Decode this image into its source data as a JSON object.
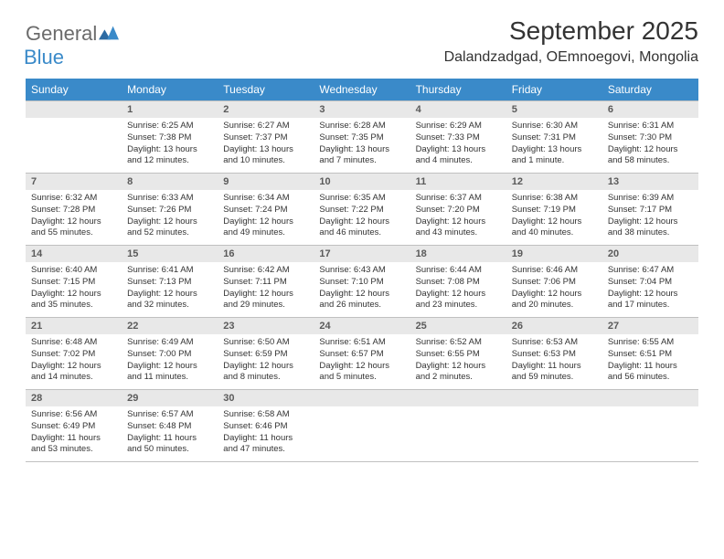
{
  "logo": {
    "general": "General",
    "blue": "Blue"
  },
  "title": "September 2025",
  "location": "Dalandzadgad, OEmnoegovi, Mongolia",
  "colors": {
    "header_bg": "#3a8ac9",
    "daynum_bg": "#e8e8e8",
    "text": "#333333",
    "logo_gray": "#6b6b6b",
    "logo_blue": "#3a8ac9",
    "rule": "#c0c0c0"
  },
  "weekdays": [
    "Sunday",
    "Monday",
    "Tuesday",
    "Wednesday",
    "Thursday",
    "Friday",
    "Saturday"
  ],
  "days": [
    {
      "num": "",
      "sunrise": "",
      "sunset": "",
      "daylight": ""
    },
    {
      "num": "1",
      "sunrise": "Sunrise: 6:25 AM",
      "sunset": "Sunset: 7:38 PM",
      "daylight": "Daylight: 13 hours and 12 minutes."
    },
    {
      "num": "2",
      "sunrise": "Sunrise: 6:27 AM",
      "sunset": "Sunset: 7:37 PM",
      "daylight": "Daylight: 13 hours and 10 minutes."
    },
    {
      "num": "3",
      "sunrise": "Sunrise: 6:28 AM",
      "sunset": "Sunset: 7:35 PM",
      "daylight": "Daylight: 13 hours and 7 minutes."
    },
    {
      "num": "4",
      "sunrise": "Sunrise: 6:29 AM",
      "sunset": "Sunset: 7:33 PM",
      "daylight": "Daylight: 13 hours and 4 minutes."
    },
    {
      "num": "5",
      "sunrise": "Sunrise: 6:30 AM",
      "sunset": "Sunset: 7:31 PM",
      "daylight": "Daylight: 13 hours and 1 minute."
    },
    {
      "num": "6",
      "sunrise": "Sunrise: 6:31 AM",
      "sunset": "Sunset: 7:30 PM",
      "daylight": "Daylight: 12 hours and 58 minutes."
    },
    {
      "num": "7",
      "sunrise": "Sunrise: 6:32 AM",
      "sunset": "Sunset: 7:28 PM",
      "daylight": "Daylight: 12 hours and 55 minutes."
    },
    {
      "num": "8",
      "sunrise": "Sunrise: 6:33 AM",
      "sunset": "Sunset: 7:26 PM",
      "daylight": "Daylight: 12 hours and 52 minutes."
    },
    {
      "num": "9",
      "sunrise": "Sunrise: 6:34 AM",
      "sunset": "Sunset: 7:24 PM",
      "daylight": "Daylight: 12 hours and 49 minutes."
    },
    {
      "num": "10",
      "sunrise": "Sunrise: 6:35 AM",
      "sunset": "Sunset: 7:22 PM",
      "daylight": "Daylight: 12 hours and 46 minutes."
    },
    {
      "num": "11",
      "sunrise": "Sunrise: 6:37 AM",
      "sunset": "Sunset: 7:20 PM",
      "daylight": "Daylight: 12 hours and 43 minutes."
    },
    {
      "num": "12",
      "sunrise": "Sunrise: 6:38 AM",
      "sunset": "Sunset: 7:19 PM",
      "daylight": "Daylight: 12 hours and 40 minutes."
    },
    {
      "num": "13",
      "sunrise": "Sunrise: 6:39 AM",
      "sunset": "Sunset: 7:17 PM",
      "daylight": "Daylight: 12 hours and 38 minutes."
    },
    {
      "num": "14",
      "sunrise": "Sunrise: 6:40 AM",
      "sunset": "Sunset: 7:15 PM",
      "daylight": "Daylight: 12 hours and 35 minutes."
    },
    {
      "num": "15",
      "sunrise": "Sunrise: 6:41 AM",
      "sunset": "Sunset: 7:13 PM",
      "daylight": "Daylight: 12 hours and 32 minutes."
    },
    {
      "num": "16",
      "sunrise": "Sunrise: 6:42 AM",
      "sunset": "Sunset: 7:11 PM",
      "daylight": "Daylight: 12 hours and 29 minutes."
    },
    {
      "num": "17",
      "sunrise": "Sunrise: 6:43 AM",
      "sunset": "Sunset: 7:10 PM",
      "daylight": "Daylight: 12 hours and 26 minutes."
    },
    {
      "num": "18",
      "sunrise": "Sunrise: 6:44 AM",
      "sunset": "Sunset: 7:08 PM",
      "daylight": "Daylight: 12 hours and 23 minutes."
    },
    {
      "num": "19",
      "sunrise": "Sunrise: 6:46 AM",
      "sunset": "Sunset: 7:06 PM",
      "daylight": "Daylight: 12 hours and 20 minutes."
    },
    {
      "num": "20",
      "sunrise": "Sunrise: 6:47 AM",
      "sunset": "Sunset: 7:04 PM",
      "daylight": "Daylight: 12 hours and 17 minutes."
    },
    {
      "num": "21",
      "sunrise": "Sunrise: 6:48 AM",
      "sunset": "Sunset: 7:02 PM",
      "daylight": "Daylight: 12 hours and 14 minutes."
    },
    {
      "num": "22",
      "sunrise": "Sunrise: 6:49 AM",
      "sunset": "Sunset: 7:00 PM",
      "daylight": "Daylight: 12 hours and 11 minutes."
    },
    {
      "num": "23",
      "sunrise": "Sunrise: 6:50 AM",
      "sunset": "Sunset: 6:59 PM",
      "daylight": "Daylight: 12 hours and 8 minutes."
    },
    {
      "num": "24",
      "sunrise": "Sunrise: 6:51 AM",
      "sunset": "Sunset: 6:57 PM",
      "daylight": "Daylight: 12 hours and 5 minutes."
    },
    {
      "num": "25",
      "sunrise": "Sunrise: 6:52 AM",
      "sunset": "Sunset: 6:55 PM",
      "daylight": "Daylight: 12 hours and 2 minutes."
    },
    {
      "num": "26",
      "sunrise": "Sunrise: 6:53 AM",
      "sunset": "Sunset: 6:53 PM",
      "daylight": "Daylight: 11 hours and 59 minutes."
    },
    {
      "num": "27",
      "sunrise": "Sunrise: 6:55 AM",
      "sunset": "Sunset: 6:51 PM",
      "daylight": "Daylight: 11 hours and 56 minutes."
    },
    {
      "num": "28",
      "sunrise": "Sunrise: 6:56 AM",
      "sunset": "Sunset: 6:49 PM",
      "daylight": "Daylight: 11 hours and 53 minutes."
    },
    {
      "num": "29",
      "sunrise": "Sunrise: 6:57 AM",
      "sunset": "Sunset: 6:48 PM",
      "daylight": "Daylight: 11 hours and 50 minutes."
    },
    {
      "num": "30",
      "sunrise": "Sunrise: 6:58 AM",
      "sunset": "Sunset: 6:46 PM",
      "daylight": "Daylight: 11 hours and 47 minutes."
    },
    {
      "num": "",
      "sunrise": "",
      "sunset": "",
      "daylight": ""
    },
    {
      "num": "",
      "sunrise": "",
      "sunset": "",
      "daylight": ""
    },
    {
      "num": "",
      "sunrise": "",
      "sunset": "",
      "daylight": ""
    },
    {
      "num": "",
      "sunrise": "",
      "sunset": "",
      "daylight": ""
    }
  ]
}
